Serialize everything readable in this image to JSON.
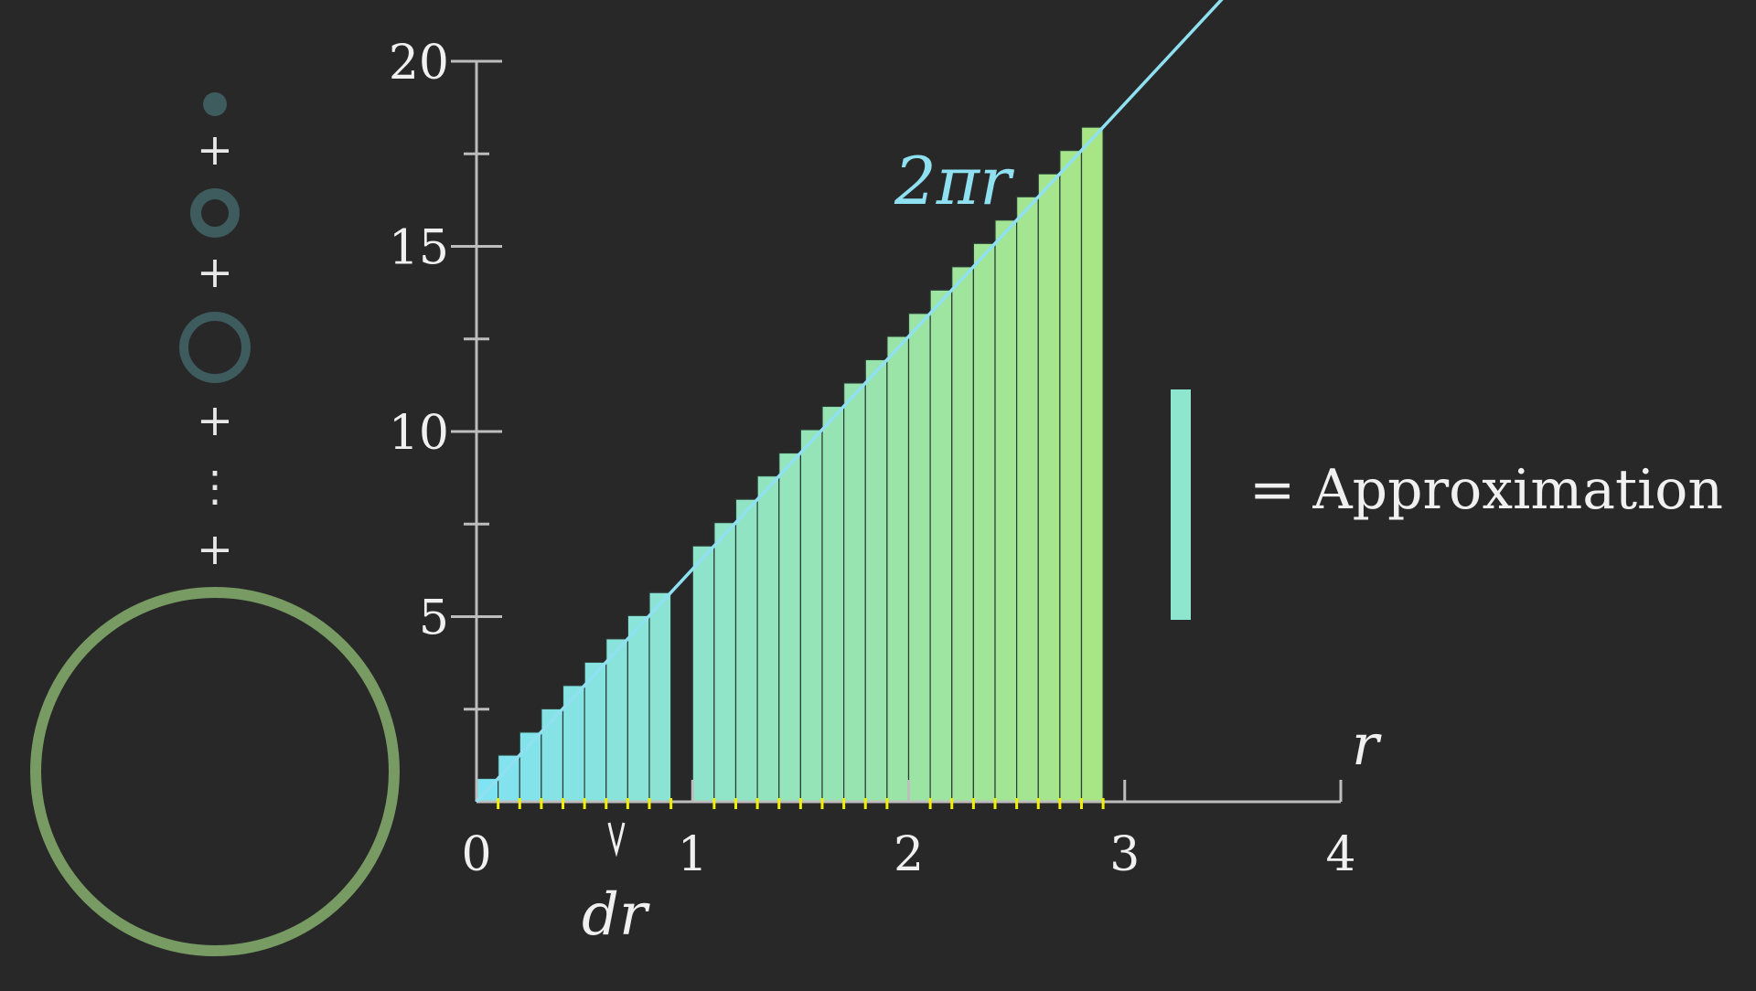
{
  "chart_data": {
    "type": "bar",
    "title": "",
    "xlabel": "r",
    "ylabel": "",
    "xlim": [
      0,
      4
    ],
    "ylim": [
      0,
      20
    ],
    "x_ticks": [
      "0",
      "1",
      "2",
      "3",
      "4"
    ],
    "y_ticks": [
      "5",
      "10",
      "15",
      "20"
    ],
    "bar_width": 0.1,
    "categories": [
      0.1,
      0.2,
      0.3,
      0.4,
      0.5,
      0.6,
      0.7,
      0.8,
      0.9,
      1.1,
      1.2,
      1.3,
      1.4,
      1.5,
      1.6,
      1.7,
      1.8,
      1.9,
      2.0,
      2.1,
      2.2,
      2.3,
      2.4,
      2.5,
      2.6,
      2.7,
      2.8,
      2.9
    ],
    "values": [
      0.63,
      1.26,
      1.88,
      2.51,
      3.14,
      3.77,
      4.4,
      5.03,
      5.65,
      6.91,
      7.54,
      8.17,
      8.8,
      9.42,
      10.05,
      10.68,
      11.31,
      11.94,
      12.57,
      13.19,
      13.82,
      14.45,
      15.08,
      15.71,
      16.34,
      16.96,
      17.59,
      18.22
    ],
    "series": [
      {
        "name": "2πr",
        "type": "line",
        "x": [
          0,
          3.5
        ],
        "y": [
          0,
          21.99
        ]
      }
    ],
    "annotations": {
      "curve_label": "2πr",
      "dr_label": "dr",
      "equals_label": "= Approximation"
    },
    "colors": {
      "background": "#282828",
      "axis": "#bdbdbd",
      "line": "#8fe0f0",
      "bar_start": "#7fe3f6",
      "bar_end": "#a7e585",
      "ticks_marks": "#f0f000",
      "approx_swatch": "#8fe6cf",
      "ring_small": "#3e5b5d",
      "big_circle": "#789a63"
    },
    "grid": false,
    "legend": "none"
  },
  "left_panel": {
    "plus_symbol": "+",
    "vdots_symbol": "⋮"
  }
}
